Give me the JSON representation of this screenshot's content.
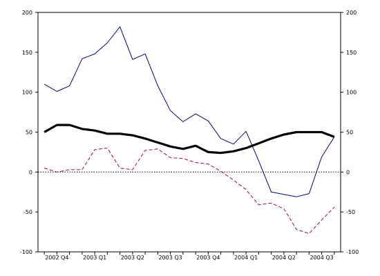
{
  "chart_data": {
    "type": "line",
    "title": "",
    "xlabel": "",
    "ylabel": "",
    "ylim": [
      -100,
      200
    ],
    "y_ticks": [
      -100,
      -50,
      0,
      50,
      100,
      150,
      200
    ],
    "y_tick_labels": [
      "-100",
      "-50",
      "0",
      "50",
      "100",
      "150",
      "200"
    ],
    "x_tick_labels": [
      "2002 Q4",
      "2003 Q1",
      "2003 Q2",
      "2003 Q3",
      "2003 Q4",
      "2004 Q1",
      "2004 Q2",
      "2004 Q3"
    ],
    "x_tick_index": [
      1,
      4,
      7,
      10,
      13,
      16,
      19,
      22
    ],
    "n_points": 24,
    "grid": false,
    "legend": "none",
    "series": [
      {
        "style": "thin-solid",
        "color": "#00008b",
        "values": [
          110,
          101,
          108,
          142,
          148,
          162,
          182,
          141,
          148,
          108,
          77,
          63,
          73,
          64,
          42,
          35,
          51,
          14,
          -25,
          -28,
          -31,
          -27,
          19,
          44
        ]
      },
      {
        "style": "thick-solid",
        "color": "#000000",
        "values": [
          50,
          59,
          59,
          54,
          52,
          48,
          48,
          46,
          42,
          37,
          32,
          29,
          33,
          25,
          24,
          26,
          30,
          36,
          42,
          47,
          50,
          50,
          50,
          44
        ]
      },
      {
        "style": "dashed",
        "color": "#b0003a",
        "values": [
          5,
          0,
          3,
          3,
          28,
          30,
          5,
          3,
          27,
          29,
          18,
          17,
          12,
          10,
          1,
          -10,
          -22,
          -41,
          -39,
          -46,
          -72,
          -77,
          -60,
          -44
        ]
      },
      {
        "style": "dotted-zero-line",
        "color": "#000000",
        "values": [
          0,
          0
        ]
      }
    ]
  }
}
